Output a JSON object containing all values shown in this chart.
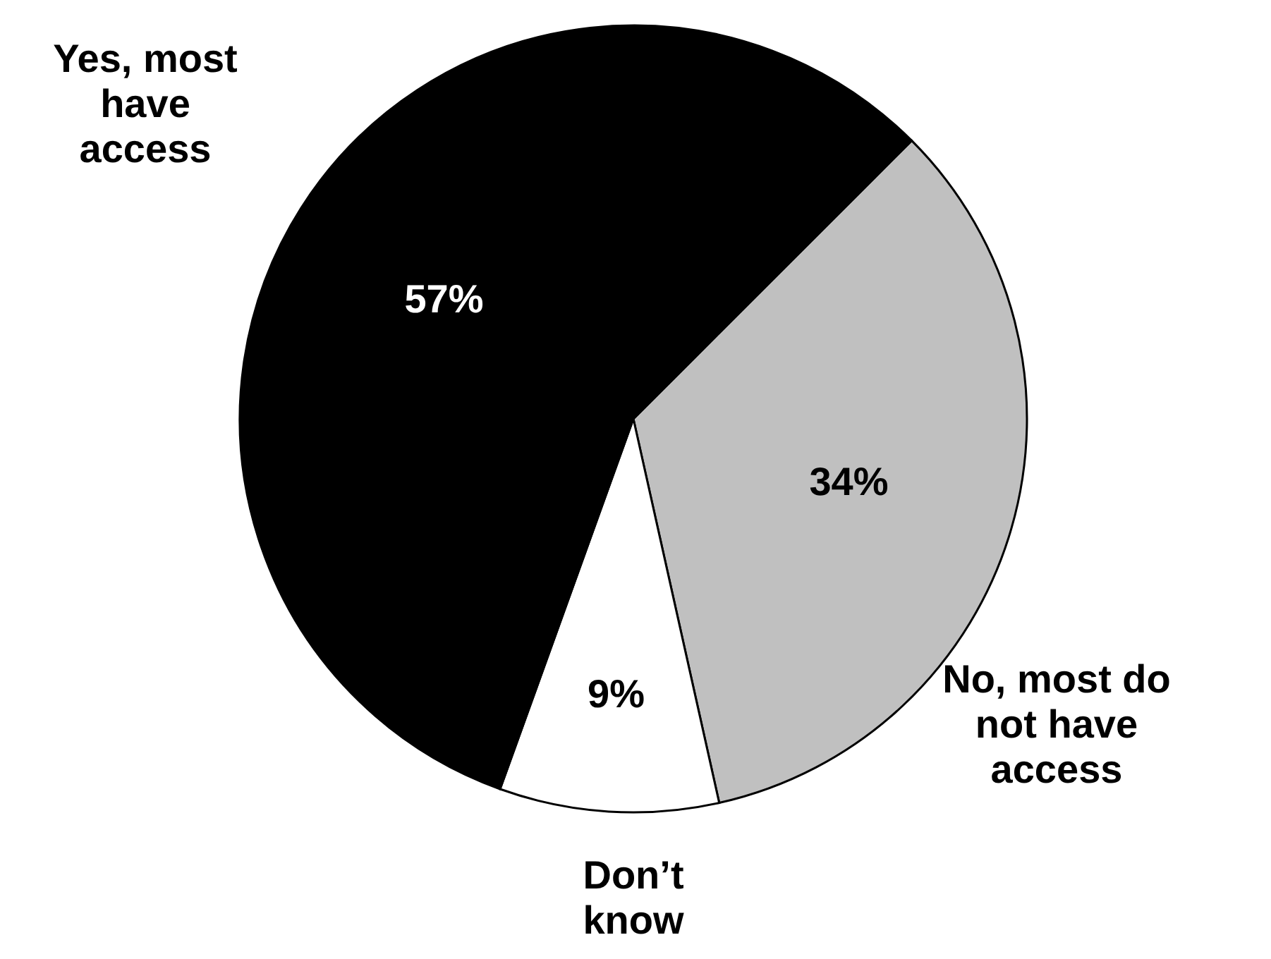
{
  "chart_data": {
    "type": "pie",
    "categories": [
      "No, most do not have access",
      "Don’t know",
      "Yes, most have access"
    ],
    "values": [
      34,
      9,
      57
    ],
    "colors": [
      "#c0c0c0",
      "#ffffff",
      "#000000"
    ],
    "value_labels": [
      "34%",
      "9%",
      "57%"
    ]
  }
}
